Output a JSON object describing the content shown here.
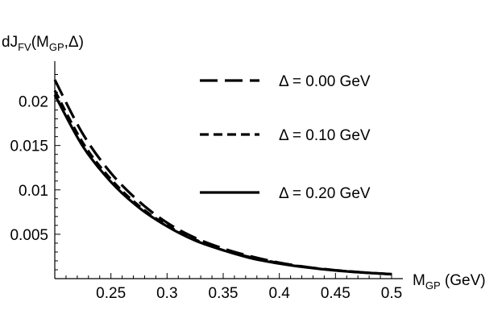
{
  "chart_data": {
    "type": "line",
    "ylabel": {
      "main": "dJ",
      "sub1": "FV",
      "mid": "(M",
      "sub2": "GP",
      "end": ",Δ)"
    },
    "xlabel": {
      "main": "M",
      "sub": "GP",
      "end": " (GeV)"
    },
    "xlim": [
      0.2,
      0.5
    ],
    "ylim": [
      0,
      0.0235
    ],
    "x_ticks": [
      0.25,
      0.3,
      0.35,
      0.4,
      0.45,
      0.5
    ],
    "x_tick_labels": [
      "0.25",
      "0.3",
      "0.35",
      "0.4",
      "0.45",
      "0.5"
    ],
    "y_ticks": [
      0.005,
      0.01,
      0.015,
      0.02
    ],
    "y_tick_labels": [
      "0.005",
      "0.01",
      "0.015",
      "0.02"
    ],
    "legend_position": "top-right",
    "series": [
      {
        "name": "Δ = 0.00 GeV",
        "style": "long-dash",
        "x": [
          0.2,
          0.225,
          0.25,
          0.275,
          0.3,
          0.325,
          0.35,
          0.375,
          0.4,
          0.425,
          0.45,
          0.475,
          0.5
        ],
        "values": [
          0.0224,
          0.0163,
          0.0119,
          0.0087,
          0.0063,
          0.0046,
          0.0034,
          0.0025,
          0.0018,
          0.0013,
          0.00095,
          0.0007,
          0.0005
        ]
      },
      {
        "name": "Δ = 0.10 GeV",
        "style": "short-dash",
        "x": [
          0.2,
          0.225,
          0.25,
          0.275,
          0.3,
          0.325,
          0.35,
          0.375,
          0.4,
          0.425,
          0.45,
          0.475,
          0.5
        ],
        "values": [
          0.0212,
          0.0153,
          0.0112,
          0.0082,
          0.006,
          0.0044,
          0.0032,
          0.0024,
          0.00175,
          0.00128,
          0.00094,
          0.00069,
          0.0005
        ]
      },
      {
        "name": "Δ = 0.20 GeV",
        "style": "solid",
        "x": [
          0.2,
          0.225,
          0.25,
          0.275,
          0.3,
          0.325,
          0.35,
          0.375,
          0.4,
          0.425,
          0.45,
          0.475,
          0.5
        ],
        "values": [
          0.0207,
          0.0149,
          0.0109,
          0.008,
          0.0059,
          0.0043,
          0.0032,
          0.0023,
          0.0017,
          0.00125,
          0.00092,
          0.00068,
          0.0005
        ]
      }
    ]
  }
}
